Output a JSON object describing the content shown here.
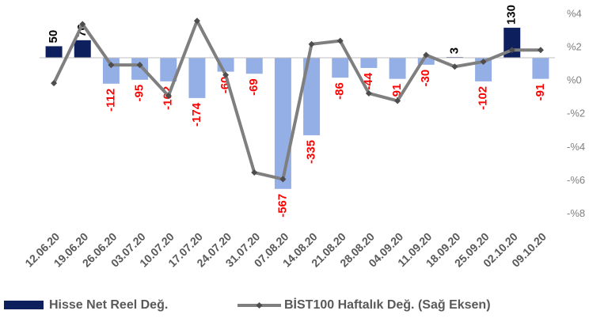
{
  "chart_data": {
    "type": "bar",
    "categories": [
      "12.06.20",
      "19.06.20",
      "26.06.20",
      "03.07.20",
      "10.07.20",
      "17.07.20",
      "24.07.20",
      "31.07.20",
      "07.08.20",
      "14.08.20",
      "21.08.20",
      "28.08.20",
      "04.09.20",
      "11.09.20",
      "18.09.20",
      "25.09.20",
      "02.10.20",
      "09.10.20"
    ],
    "series": [
      {
        "name": "Hisse Net Reel Değ.",
        "type": "bar",
        "positive_color": "#0d1f5c",
        "negative_color": "#94aee6",
        "values": [
          50,
          76,
          -112,
          -95,
          -102,
          -174,
          -60,
          -69,
          -567,
          -335,
          -86,
          -44,
          -91,
          -30,
          3,
          -102,
          130,
          -91
        ]
      },
      {
        "name": "BİST100 Haftalık Değ. (Sağ Eksen)",
        "type": "line",
        "axis": "y2",
        "color": "#7f7f7f",
        "marker_color": "#4d4d4d",
        "values": [
          -0.14,
          3.4,
          0.95,
          0.95,
          -0.9,
          3.6,
          0.35,
          -5.5,
          -5.9,
          2.2,
          2.4,
          -0.75,
          -1.2,
          1.55,
          0.85,
          1.15,
          1.85,
          1.85
        ]
      }
    ],
    "ylim": [
      -650,
      250
    ],
    "y2lim": [
      -8.3,
      4.85
    ],
    "y2ticks": [
      {
        "value": 4,
        "label": "%4"
      },
      {
        "value": 2,
        "label": "%2"
      },
      {
        "value": 0,
        "label": "%0"
      },
      {
        "value": -2,
        "label": "-%2"
      },
      {
        "value": -4,
        "label": "-%4"
      },
      {
        "value": -6,
        "label": "-%6"
      },
      {
        "value": -8,
        "label": "-%8"
      }
    ],
    "negative_label_color": "#ff0000",
    "positive_label_color": "#000000",
    "axis_color": "#bfbfbf"
  }
}
